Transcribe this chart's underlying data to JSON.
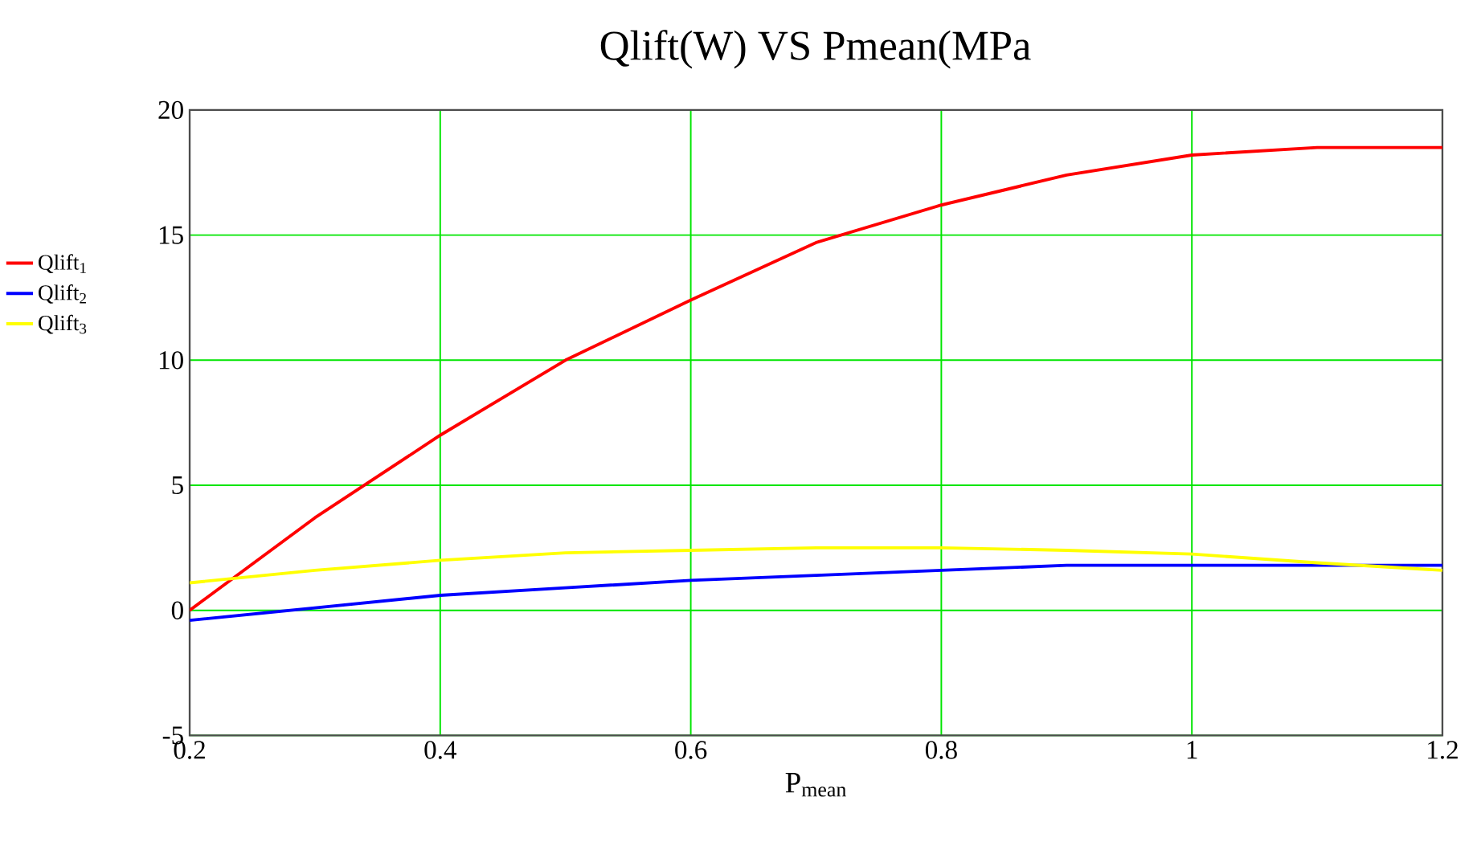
{
  "chart_data": {
    "type": "line",
    "title": "Qlift(W) VS Pmean(MPa",
    "xlabel": "P$_{mean}$",
    "x": [
      0.2,
      0.3,
      0.4,
      0.5,
      0.6,
      0.7,
      0.8,
      0.9,
      1.0,
      1.1,
      1.2
    ],
    "series": [
      {
        "name": "Qlift$_{1}$",
        "color": "#ff0000",
        "values": [
          0,
          3.7,
          7.0,
          10.0,
          12.4,
          14.7,
          16.2,
          17.4,
          18.2,
          18.5,
          18.5
        ]
      },
      {
        "name": "Qlift$_{2}$",
        "color": "#0000ff",
        "values": [
          -0.4,
          0.1,
          0.6,
          0.9,
          1.2,
          1.4,
          1.6,
          1.8,
          1.8,
          1.8,
          1.8
        ]
      },
      {
        "name": "Qlift$_{3}$",
        "color": "#ffff00",
        "values": [
          1.1,
          1.6,
          2.0,
          2.3,
          2.4,
          2.5,
          2.5,
          2.4,
          2.25,
          1.9,
          1.6
        ]
      }
    ],
    "xlim": [
      0.2,
      1.2
    ],
    "ylim": [
      -5,
      20
    ],
    "xticks": [
      0.2,
      0.4,
      0.6,
      0.8,
      1,
      1.2
    ],
    "yticks": [
      -5,
      0,
      5,
      10,
      15,
      20
    ],
    "grid": true,
    "legend": "left",
    "marker": "none",
    "line_style": "solid"
  }
}
